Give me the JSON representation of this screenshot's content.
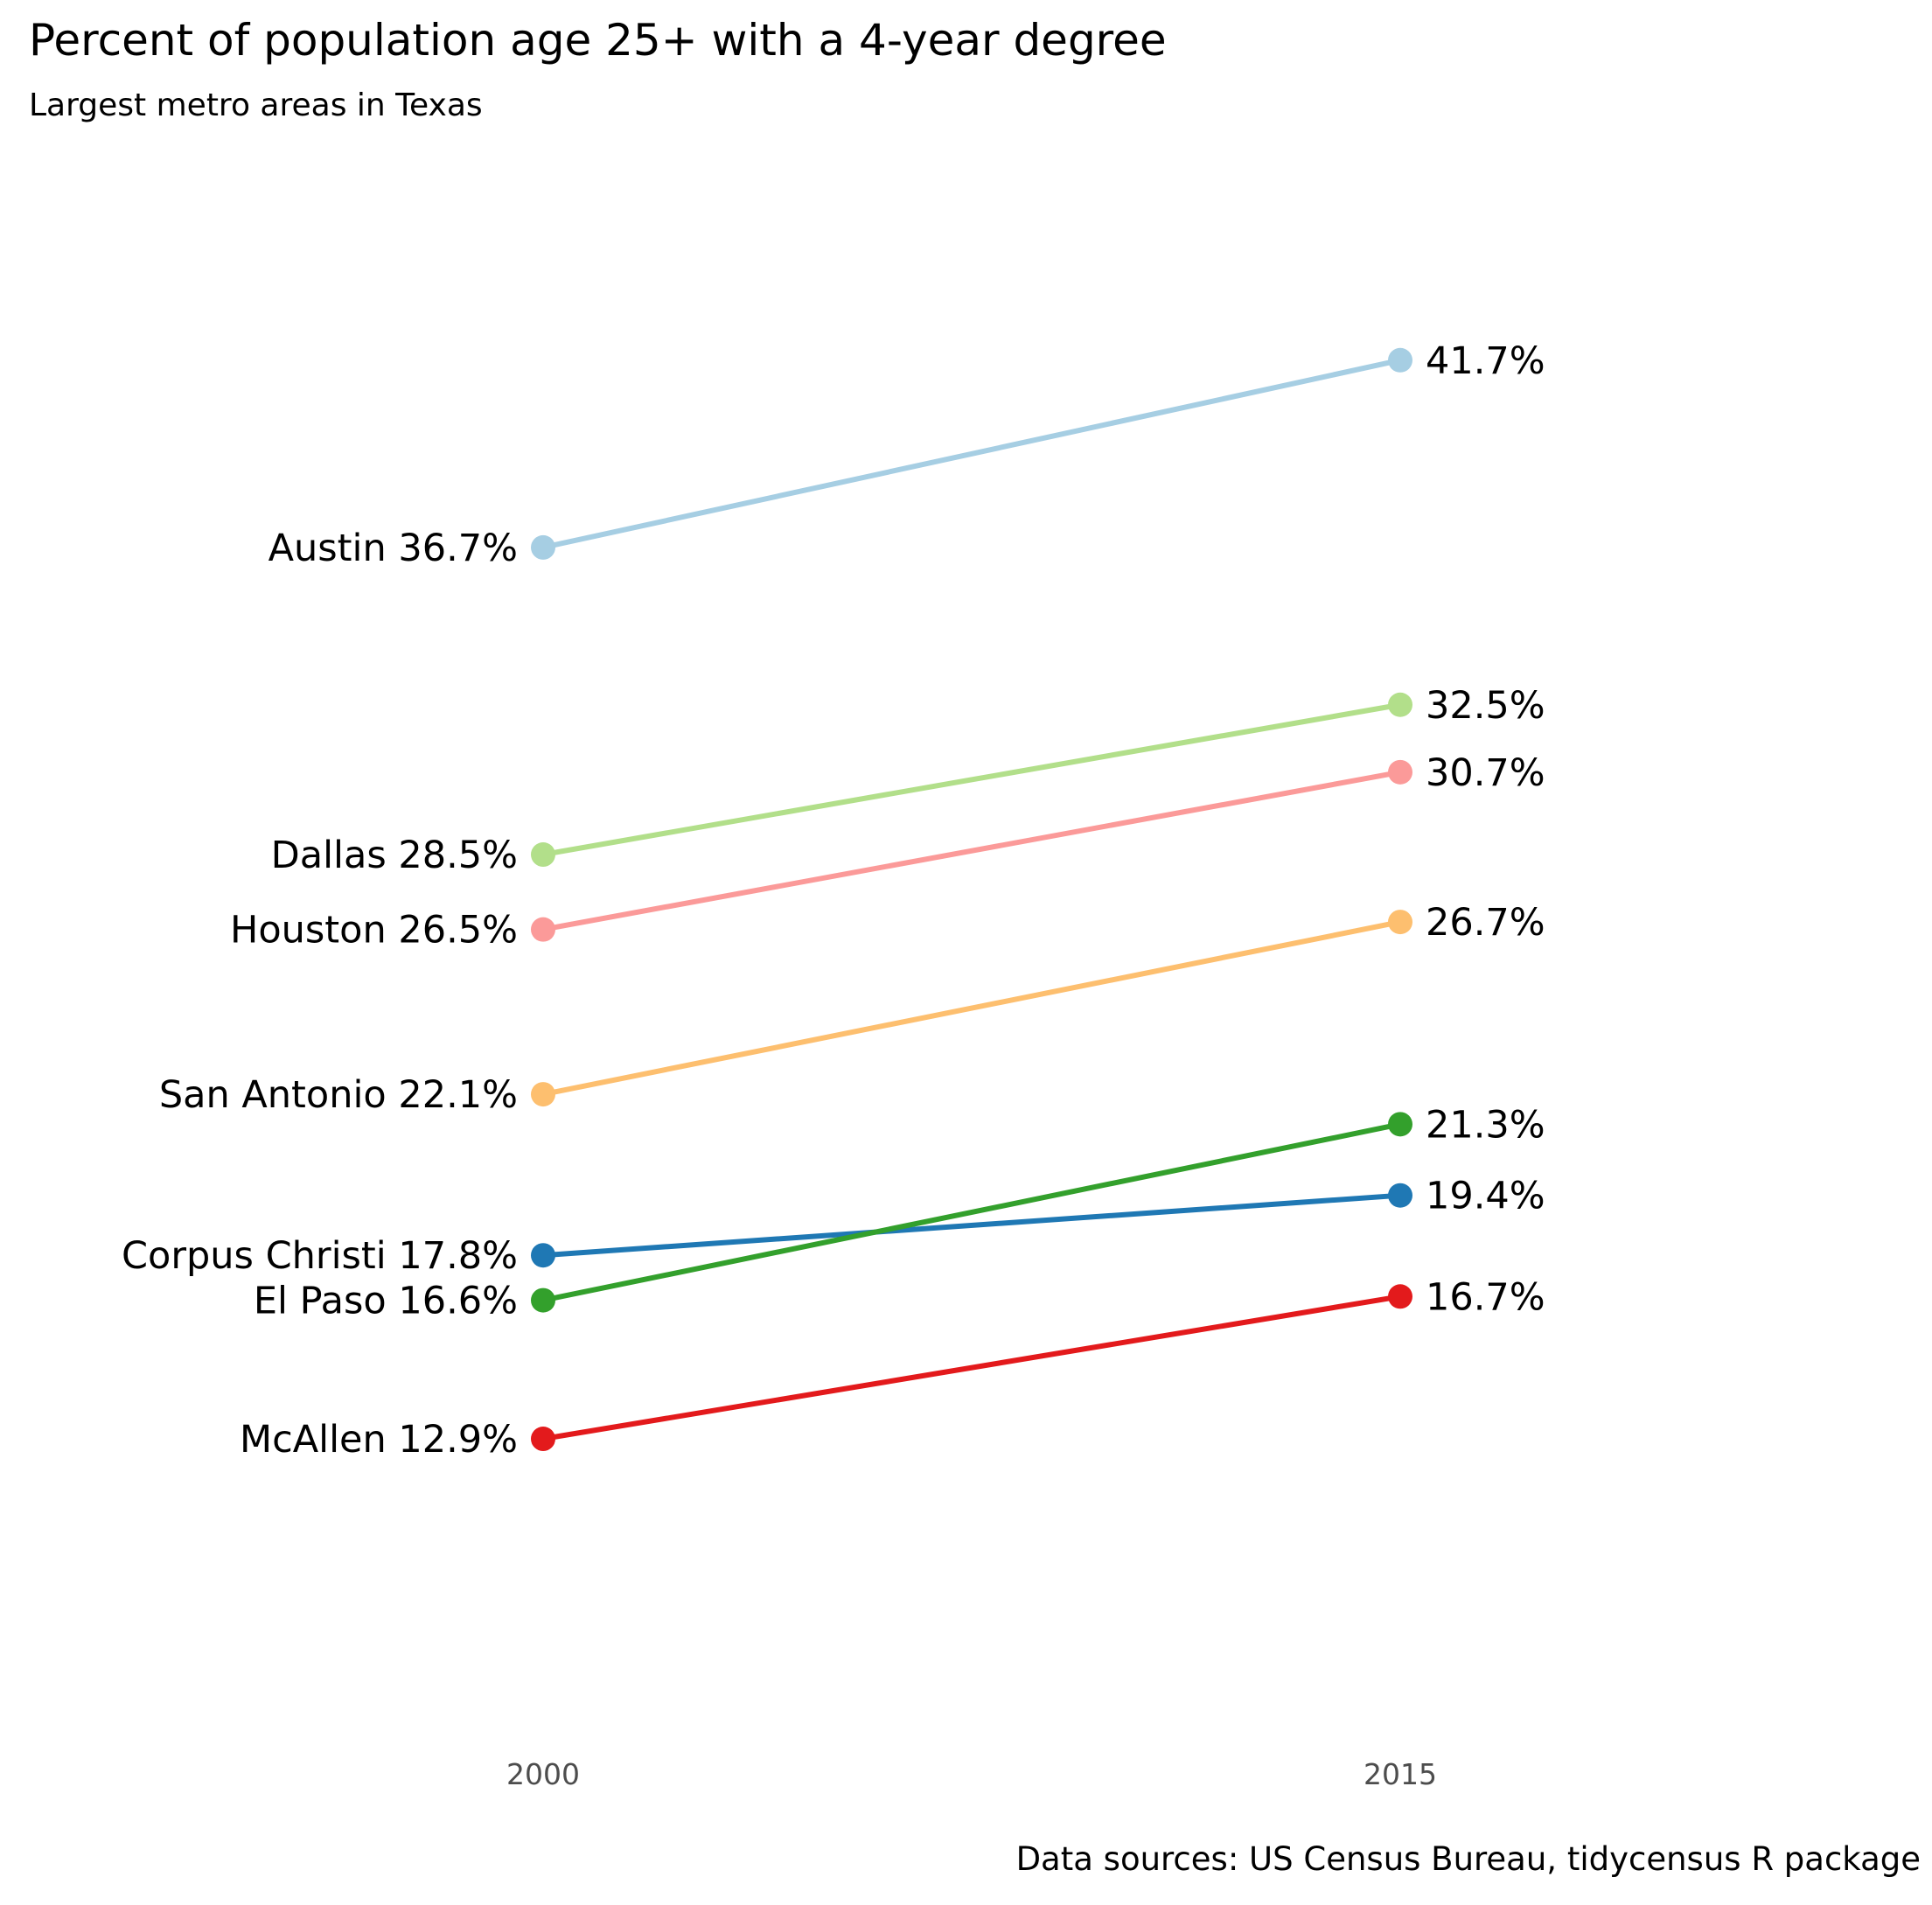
{
  "chart_data": {
    "type": "line",
    "title": "Percent of population age 25+ with a 4-year degree",
    "subtitle": "Largest metro areas in Texas",
    "caption": "Data sources: US Census Bureau, tidycensus R package",
    "x": [
      "2000",
      "2015"
    ],
    "grid": false,
    "legend": "none",
    "series": [
      {
        "name": "Austin",
        "values": [
          36.7,
          41.7
        ],
        "start_label": "Austin 36.7%",
        "end_label": "41.7%",
        "color": "#A6CEE3"
      },
      {
        "name": "Dallas",
        "values": [
          28.5,
          32.5
        ],
        "start_label": "Dallas 28.5%",
        "end_label": "32.5%",
        "color": "#B2DF8A"
      },
      {
        "name": "Houston",
        "values": [
          26.5,
          30.7
        ],
        "start_label": "Houston 26.5%",
        "end_label": "30.7%",
        "color": "#FB9A99"
      },
      {
        "name": "San Antonio",
        "values": [
          22.1,
          26.7
        ],
        "start_label": "San Antonio 22.1%",
        "end_label": "26.7%",
        "color": "#FDBF6F"
      },
      {
        "name": "Corpus Christi",
        "values": [
          17.8,
          19.4
        ],
        "start_label": "Corpus Christi 17.8%",
        "end_label": "19.4%",
        "color": "#1F78B4"
      },
      {
        "name": "El Paso",
        "values": [
          16.6,
          21.3
        ],
        "start_label": "El Paso 16.6%",
        "end_label": "21.3%",
        "color": "#33A02C"
      },
      {
        "name": "McAllen",
        "values": [
          12.9,
          16.7
        ],
        "start_label": "McAllen 12.9%",
        "end_label": "16.7%",
        "color": "#E31A1C"
      }
    ]
  }
}
